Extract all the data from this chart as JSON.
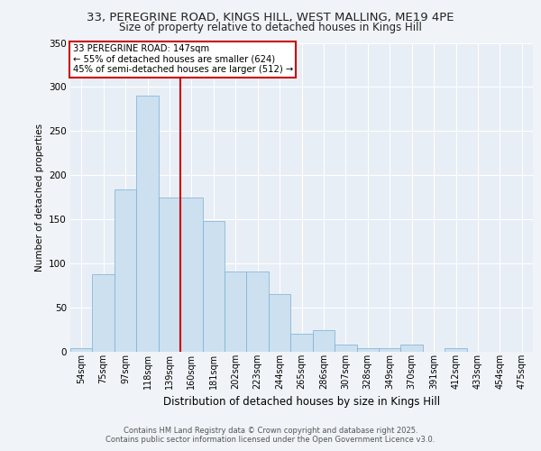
{
  "title_line1": "33, PEREGRINE ROAD, KINGS HILL, WEST MALLING, ME19 4PE",
  "title_line2": "Size of property relative to detached houses in Kings Hill",
  "xlabel": "Distribution of detached houses by size in Kings Hill",
  "ylabel": "Number of detached properties",
  "bar_labels": [
    "54sqm",
    "75sqm",
    "97sqm",
    "118sqm",
    "139sqm",
    "160sqm",
    "181sqm",
    "202sqm",
    "223sqm",
    "244sqm",
    "265sqm",
    "286sqm",
    "307sqm",
    "328sqm",
    "349sqm",
    "370sqm",
    "391sqm",
    "412sqm",
    "433sqm",
    "454sqm",
    "475sqm"
  ],
  "bar_values": [
    4,
    88,
    184,
    290,
    175,
    175,
    148,
    91,
    91,
    65,
    20,
    25,
    8,
    4,
    4,
    8,
    0,
    4,
    0,
    0,
    0
  ],
  "bar_color": "#cce0f0",
  "bar_edge_color": "#7aafd4",
  "vline_color": "#cc0000",
  "annotation_title": "33 PEREGRINE ROAD: 147sqm",
  "annotation_line2": "← 55% of detached houses are smaller (624)",
  "annotation_line3": "45% of semi-detached houses are larger (512) →",
  "annotation_box_color": "#ffffff",
  "annotation_box_edge": "#cc0000",
  "ylim": [
    0,
    350
  ],
  "yticks": [
    0,
    50,
    100,
    150,
    200,
    250,
    300,
    350
  ],
  "background_color": "#e8eef5",
  "grid_color": "#ffffff",
  "fig_bg_color": "#f0f4f8",
  "footer_line1": "Contains HM Land Registry data © Crown copyright and database right 2025.",
  "footer_line2": "Contains public sector information licensed under the Open Government Licence v3.0."
}
